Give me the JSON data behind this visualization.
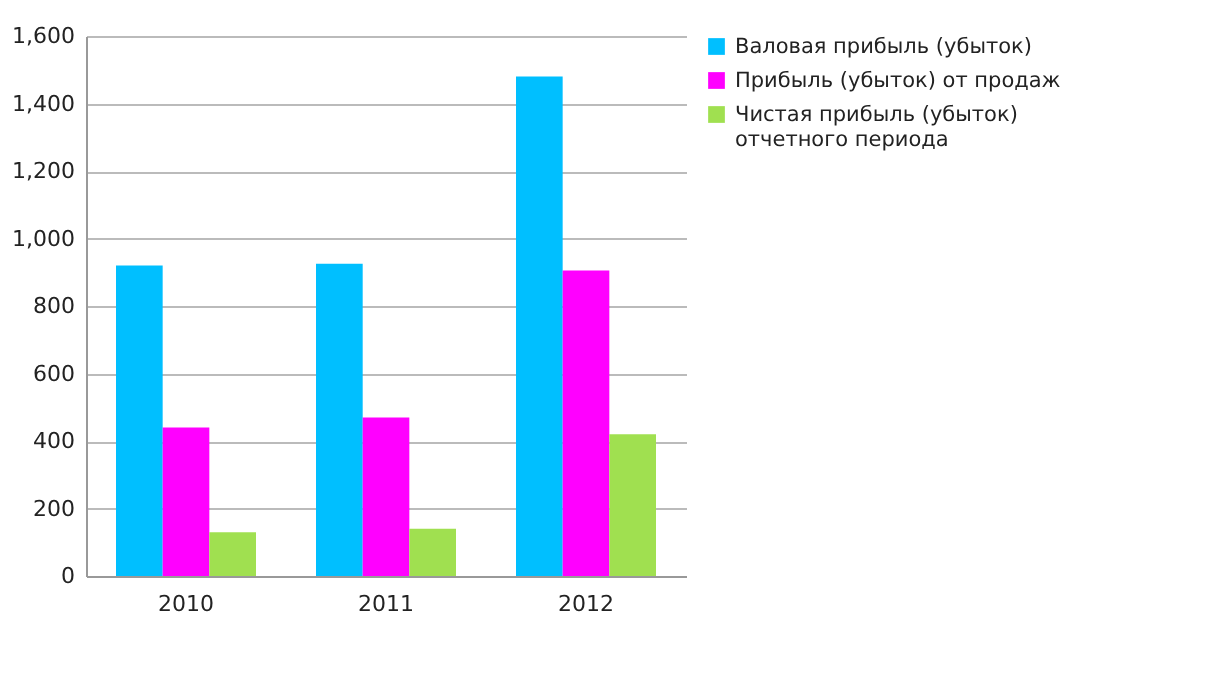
{
  "chart_data": {
    "type": "bar",
    "categories": [
      "2010",
      "2011",
      "2012"
    ],
    "series": [
      {
        "name": "Валовая прибыль (убыток)",
        "color": "#00bfff",
        "values": [
          920,
          925,
          1480
        ]
      },
      {
        "name": "Прибыль (убыток) от продаж",
        "color": "#ff00ff",
        "values": [
          440,
          470,
          905
        ]
      },
      {
        "name": "Чистая прибыль (убыток) отчетного периода",
        "color": "#a0e050",
        "values": [
          130,
          140,
          420
        ]
      }
    ],
    "ylim": [
      0,
      1600
    ],
    "yticks": [
      0,
      200,
      400,
      600,
      800,
      {
        "value": 1000,
        "label": "1,000"
      },
      {
        "value": 1200,
        "label": "1,200"
      },
      {
        "value": 1400,
        "label": "1,400"
      },
      {
        "value": 1600,
        "label": "1,600"
      }
    ],
    "grid": "y",
    "legend": "right"
  }
}
